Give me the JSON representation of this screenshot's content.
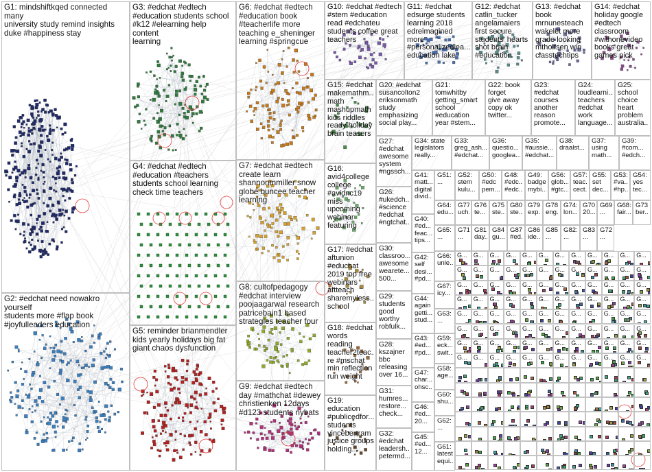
{
  "groups": [
    {
      "id": "G1",
      "label": "G1: mindshiftkqed connected many\nuniversity study remind insights\nduke #happiness stay"
    },
    {
      "id": "G2",
      "label": "G2: #edchat need nowakro yourself\nstudents more #flap book\n#joyfulleaders education"
    },
    {
      "id": "G3",
      "label": "G3: #edchat #edtech\n#education students school\n#k12 #elearning help content\nlearning"
    },
    {
      "id": "G4",
      "label": "G4: #edchat #edtech\n#education #teachers\nstudents school learning\ncheck time teachers"
    },
    {
      "id": "G5",
      "label": "G5: reminder brianmendler\nkids yearly holidays big fat\ngiant chaos dysfunction"
    },
    {
      "id": "G6",
      "label": "G6: #edchat #edtech\n#education book\n#teacherlife more\nteaching e_sheninger\nlearning #springcue"
    },
    {
      "id": "G7",
      "label": "G7: #edchat #edtech\ncreate learn\nshannonmmiller snow\nglobe buncee teacher\nlearning"
    },
    {
      "id": "G8",
      "label": "G8: cultofpedagogy\n#edchat interview\npoojaagarwal research\npatricebain1 based\nstrategies teacher four"
    },
    {
      "id": "G9",
      "label": "G9: #edchat #edtech\nday #mathchat #dewey\nchristienken 12days\n#d123 students nybats"
    },
    {
      "id": "G10",
      "label": "G10: #edchat #edtech\n#stem #education\nread #edchateu\nstudents coffee great\nteachers"
    },
    {
      "id": "G11",
      "label": "G11: #edchat\nedsurge students\nlearning 2018\nedreimagined\nmore\n#personalizedlea...\neducation lake"
    },
    {
      "id": "G12",
      "label": "G12: #edchat\ncatlin_tucker\nangelamaiers\nfirst secure\nstudents' hearts\nshot brain\n#education"
    },
    {
      "id": "G13",
      "label": "G13: #edchat\nbook\nmrnunesteach\nwakelet more\ngrade looking\nmtholfsen win\nclasstechtips"
    },
    {
      "id": "G14",
      "label": "G14: #edchat\nholiday google\n#edtech\nclassroom\n#withonevideo\nbooks great\ngames pick"
    },
    {
      "id": "G15",
      "label": "G15: #edchat\nmakemathm...\nmath\nmashupmath\nkids riddles\nready holiday\nbrain teasers"
    },
    {
      "id": "G16",
      "label": "G16:\navid4college\ncollege\n#avidnc19\nmiss\nupcoming\nwebinar\nfeaturing"
    },
    {
      "id": "G17",
      "label": "G17: #edchat\naftunion\n#educhat\n2019 top free\nwebinars\naftteach\nsharemyless...\nschool"
    },
    {
      "id": "G18",
      "label": "G18: #edchat\nwords reading\nteacher2teac...\nre #mschat\nmin reflection\nrun weight"
    },
    {
      "id": "G19",
      "label": "G19:\neducation\n#publicedfor...\nstudents\nvincebertram\njustice groups\nholding..."
    },
    {
      "id": "G20",
      "label": "G20: #edchat\nsusancolton2\neriksonmath\nstudy\nemphasizing\nsocial play..."
    },
    {
      "id": "G21",
      "label": "G21:\ntomwhitby\ngetting_smart\nschool\n#education\nyear #stem..."
    },
    {
      "id": "G22",
      "label": "G22: book\nforget\ngive away\ncopy ok\ntwitter..."
    },
    {
      "id": "G23",
      "label": "G23:\n#edchat\ncourses\nanother\nreason\npromote..."
    },
    {
      "id": "G24",
      "label": "G24:\nloudlearni...\nteachers\n#edchat\nwork\nlanguage..."
    },
    {
      "id": "G25",
      "label": "G25:\nschool\nchoice\nheart\nproblem\naustralia..."
    },
    {
      "id": "G26",
      "label": "G26:\n#ukedch...\n#science\n#edchat\n#ngtchat..."
    },
    {
      "id": "G27",
      "label": "G27:\n#edchat\nawesome\nsystem\n#ngssch..."
    },
    {
      "id": "G28",
      "label": "G28:\nkszajner\nbbc\nreleasing\nover 16..."
    },
    {
      "id": "G29",
      "label": "G29:\nstudents\ngood\nworthy\nrobfulk..."
    },
    {
      "id": "G30",
      "label": "G30:\nclassroo...\nawesome\nwearete...\n500..."
    },
    {
      "id": "G31",
      "label": "G31:\nhumres...\nrestore...\ncheck..."
    },
    {
      "id": "G32",
      "label": "G32:\n#edchat\nleadersh...\npetermd..."
    },
    {
      "id": "G33",
      "label": "G33:\ngreg_ash...\n#edchat..."
    },
    {
      "id": "G34",
      "label": "G34: state\nlegislators\nreally..."
    },
    {
      "id": "G35",
      "label": "G35:\n#aussie...\n#edchat..."
    },
    {
      "id": "G36",
      "label": "G36:\nquestio...\ngooglea..."
    },
    {
      "id": "G37",
      "label": "G37:\nusing\nmath..."
    },
    {
      "id": "G38",
      "label": "G38:\ndraalst..."
    },
    {
      "id": "G39",
      "label": "G39:\n#com...\n#edch..."
    },
    {
      "id": "G40",
      "label": "G40:\n#ed...\nfeac...\ntips..."
    },
    {
      "id": "G41",
      "label": "G41:\nmatt...\ndigital\ndivid..."
    },
    {
      "id": "G42",
      "label": "G42:\nself\ndesi...\n#pd..."
    },
    {
      "id": "G43",
      "label": "G43:\n#ed...\n#pd..."
    },
    {
      "id": "G44",
      "label": "G44:\nagain\ngetti...\nstud..."
    },
    {
      "id": "G45",
      "label": "G45:\n#ed...\n12..."
    },
    {
      "id": "G46",
      "label": "G46:\n#ed...\n20..."
    },
    {
      "id": "G47",
      "label": "G47:\nchar...\nohsc..."
    },
    {
      "id": "G48",
      "label": "G48:\n#edc...\n#edc..."
    },
    {
      "id": "G49",
      "label": "G49:\nbadge\nmybi..."
    },
    {
      "id": "G50",
      "label": "G50:\n#edc\npem..."
    },
    {
      "id": "G51",
      "label": "G51:\n..."
    },
    {
      "id": "G52",
      "label": "G52:\nstem\nkulu..."
    },
    {
      "id": "G53",
      "label": "G53:\n#va...\n#hp..."
    },
    {
      "id": "G54",
      "label": "G54:\nyes\ntec..."
    },
    {
      "id": "G55",
      "label": "G55:\nset\ndec..."
    },
    {
      "id": "G56",
      "label": "G56:\nglob...\n#gtc..."
    },
    {
      "id": "G57",
      "label": "G57:\nteac...\ncect..."
    },
    {
      "id": "G58",
      "label": "G58:\nage..."
    },
    {
      "id": "G59",
      "label": "G59:\neck...\nswit..."
    },
    {
      "id": "G60",
      "label": "G60:\nshu..."
    },
    {
      "id": "G61",
      "label": "G61:\nlatest\nequi..."
    },
    {
      "id": "G62",
      "label": "G62:\n..."
    },
    {
      "id": "G63",
      "label": "G63:\n..."
    },
    {
      "id": "G64",
      "label": "G64:\nedu..."
    },
    {
      "id": "G65",
      "label": "G65:\n..."
    },
    {
      "id": "G66",
      "label": "G66:\nunle..."
    },
    {
      "id": "G67",
      "label": "G67:\nicy..."
    },
    {
      "id": "G68",
      "label": "G68:\nfair..."
    },
    {
      "id": "G69",
      "label": "G69:\n..."
    },
    {
      "id": "G70",
      "label": "G70:\n20..."
    },
    {
      "id": "G71",
      "label": "G71:\n..."
    },
    {
      "id": "G72",
      "label": "G72:\n..."
    },
    {
      "id": "G73",
      "label": "G73:\nber..."
    },
    {
      "id": "G74",
      "label": "G74:\nlon..."
    },
    {
      "id": "G75",
      "label": "G75:\nste..."
    },
    {
      "id": "G76",
      "label": "G76:\nte..."
    },
    {
      "id": "G77",
      "label": "G77:\nuch..."
    },
    {
      "id": "G78",
      "label": "G78:\neng..."
    },
    {
      "id": "G79",
      "label": "G79:\nexp..."
    },
    {
      "id": "G80",
      "label": "G80:\nste..."
    },
    {
      "id": "G81",
      "label": "G81:\nday..."
    },
    {
      "id": "G82",
      "label": "G82:\n..."
    },
    {
      "id": "G83",
      "label": "G83:\n..."
    },
    {
      "id": "G84",
      "label": "G84:\ngu..."
    },
    {
      "id": "G85",
      "label": "G85:\n..."
    },
    {
      "id": "G86",
      "label": "G86:\nide..."
    },
    {
      "id": "G87",
      "label": "G87:\n#ed..."
    }
  ],
  "small_cell_label": "G..."
}
